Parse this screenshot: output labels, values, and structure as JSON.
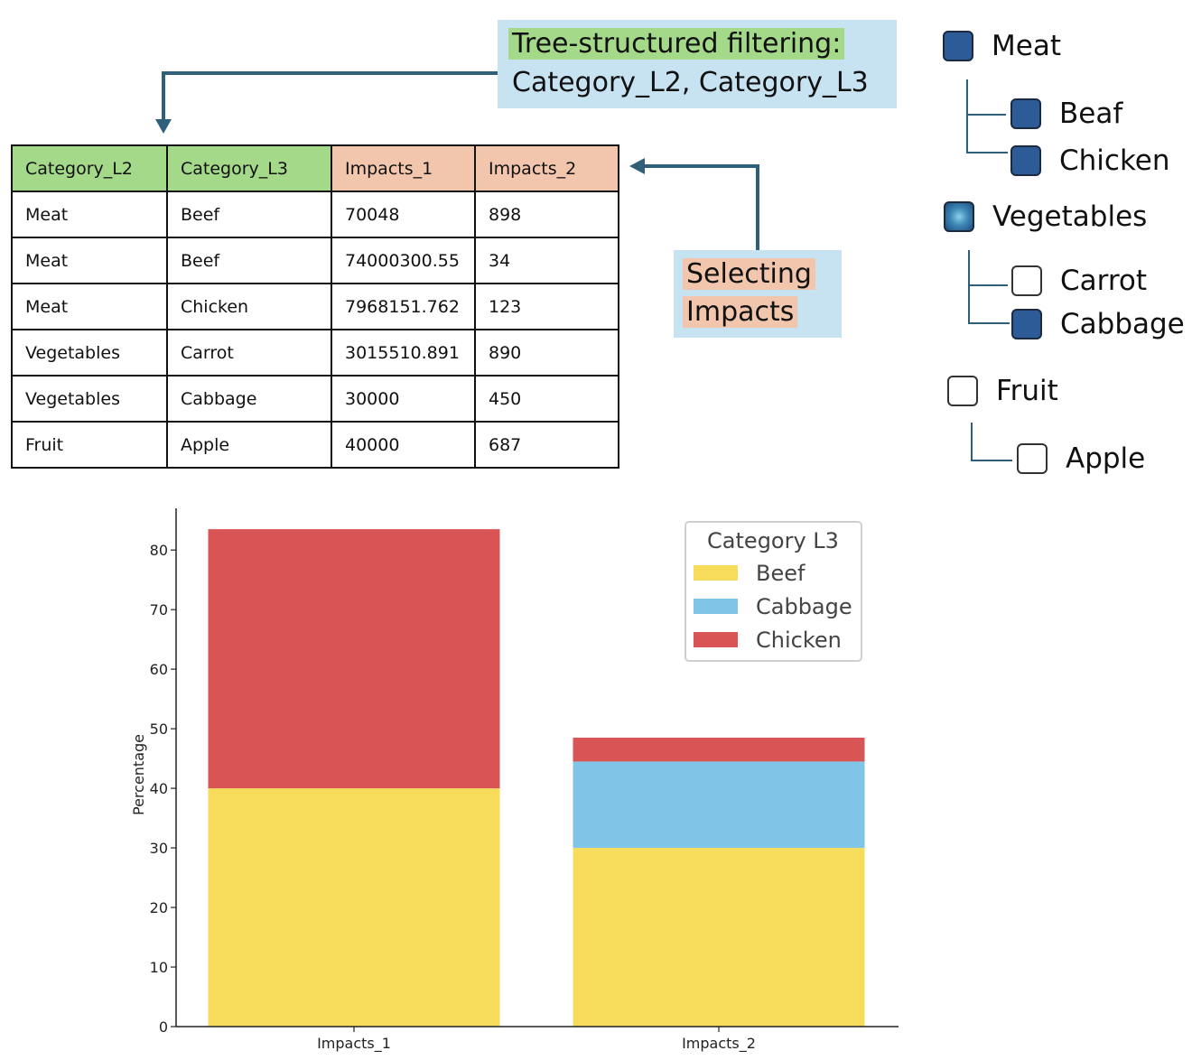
{
  "callouts": {
    "tree_filter": {
      "line1": "Tree-structured filtering:",
      "line2": "Category_L2, Category_L3"
    },
    "impacts": {
      "line1": "Selecting",
      "line2": "Impacts"
    }
  },
  "table": {
    "headers": [
      "Category_L2",
      "Category_L3",
      "Impacts_1",
      "Impacts_2"
    ],
    "rows": [
      [
        "Meat",
        "Beef",
        "70048",
        "898"
      ],
      [
        "Meat",
        "Beef",
        "74000300.55",
        "34"
      ],
      [
        "Meat",
        "Chicken",
        "7968151.762",
        "123"
      ],
      [
        "Vegetables",
        "Carrot",
        "3015510.891",
        "890"
      ],
      [
        "Vegetables",
        "Cabbage",
        "30000",
        "450"
      ],
      [
        "Fruit",
        "Apple",
        "40000",
        "687"
      ]
    ]
  },
  "tree": {
    "meat": {
      "label": "Meat",
      "state": "checked"
    },
    "beaf": {
      "label": "Beaf",
      "state": "checked"
    },
    "chicken": {
      "label": "Chicken",
      "state": "checked"
    },
    "vegetables": {
      "label": "Vegetables",
      "state": "partial"
    },
    "carrot": {
      "label": "Carrot",
      "state": "unchecked"
    },
    "cabbage": {
      "label": "Cabbage",
      "state": "checked"
    },
    "fruit": {
      "label": "Fruit",
      "state": "unchecked"
    },
    "apple": {
      "label": "Apple",
      "state": "unchecked"
    }
  },
  "colors": {
    "beef": "#f7dc5c",
    "cabbage": "#80c4e7",
    "chicken": "#d95555",
    "table_header_green": "#a5d98a",
    "table_header_peach": "#f1c6ad",
    "callout_bg": "#c7e2f1",
    "arrow": "#2f5f7a",
    "checkbox_checked": "#2d5b98"
  },
  "chart_data": {
    "type": "bar",
    "stacked": true,
    "categories": [
      "Impacts_1",
      "Impacts_2"
    ],
    "series": [
      {
        "name": "Beef",
        "values": [
          40,
          30
        ]
      },
      {
        "name": "Cabbage",
        "values": [
          0,
          14.5
        ]
      },
      {
        "name": "Chicken",
        "values": [
          43.5,
          4
        ]
      }
    ],
    "ylabel": "Percentage",
    "xlabel": "",
    "ylim": [
      0,
      87
    ],
    "yticks": [
      0,
      10,
      20,
      30,
      40,
      50,
      60,
      70,
      80
    ],
    "legend_title": "Category L3",
    "legend_position": "top-right",
    "grid": false
  }
}
